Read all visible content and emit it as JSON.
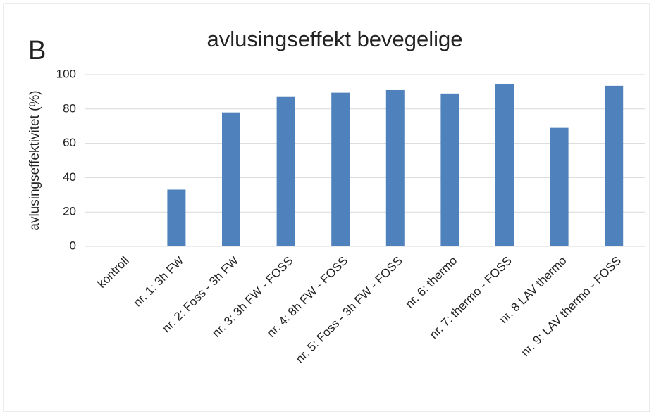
{
  "chart_data": {
    "type": "bar",
    "panel_label": "B",
    "title": "avlusingseffekt bevegelige",
    "ylabel": "avlusingseffektivitet (%)",
    "categories": [
      "kontroll",
      "nr. 1: 3h FW",
      "nr. 2: Foss - 3h FW",
      "nr. 3: 3h FW - FOSS",
      "nr. 4: 8h FW - FOSS",
      "nr. 5: Foss - 3h FW - FOSS",
      "nr. 6: thermo",
      "nr. 7: thermo - FOSS",
      "nr. 8 LAV thermo",
      "nr. 9: LAV thermo - FOSS"
    ],
    "values": [
      0,
      33,
      78,
      87,
      89.5,
      91,
      89,
      94.5,
      69,
      93.5
    ],
    "color": "#4f81bd",
    "ylim": [
      0,
      100
    ],
    "yticks": [
      0,
      20,
      40,
      60,
      80,
      100
    ],
    "grid": true
  }
}
